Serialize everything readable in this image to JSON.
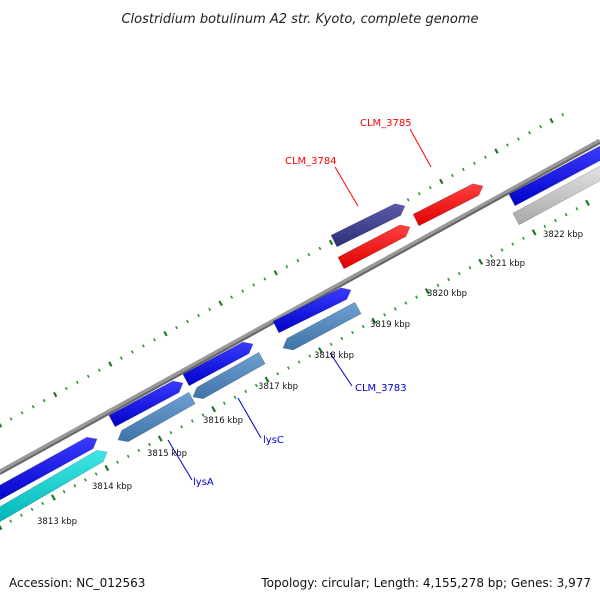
{
  "title": "Clostridium botulinum A2 str. Kyoto, complete genome",
  "footer": {
    "accession": "Accession: NC_012563",
    "summary": "Topology: circular; Length: 4,155,278 bp; Genes: 3,977"
  },
  "ticks": [
    "3813 kbp",
    "3814 kbp",
    "3815 kbp",
    "3816 kbp",
    "3817 kbp",
    "3818 kbp",
    "3819 kbp",
    "3820 kbp",
    "3821 kbp",
    "3822 kbp"
  ],
  "genes": [
    {
      "label": "CLM_3785",
      "color": "#ff0000"
    },
    {
      "label": "CLM_3784",
      "color": "#ff0000"
    },
    {
      "label": "CLM_3783",
      "color": "#0000cc"
    },
    {
      "label": "lysC",
      "color": "#0000cc"
    },
    {
      "label": "lysA",
      "color": "#0000cc"
    }
  ],
  "colors": {
    "backbone": "#777777",
    "forward_cds": "#0000ee",
    "reverse_cds": "#4a82b8",
    "rna": "#00c8c8",
    "other": "#bbbbbb",
    "highlight": "#3a3a88",
    "red_cds": "#ff0000",
    "tick": "#2a8a2a"
  }
}
